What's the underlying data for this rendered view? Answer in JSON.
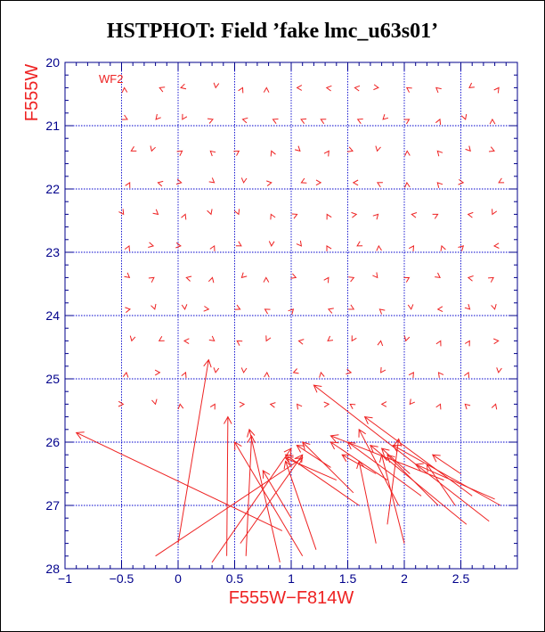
{
  "chart_data": {
    "type": "vector",
    "title": "HSTPHOT: Field ’fake lmc_u63s01’",
    "xlabel": "F555W−F814W",
    "ylabel": "F555W",
    "annotation": "WF2",
    "xlim": [
      -1,
      3
    ],
    "ylim": [
      20,
      28
    ],
    "y_inverted": true,
    "grid": true,
    "x_ticks": [
      -1,
      -0.5,
      0,
      0.5,
      1,
      1.5,
      2,
      2.5
    ],
    "x_tick_labels": [
      "−1",
      "−0.5",
      "0",
      "0.5",
      "1",
      "1.5",
      "2",
      "2.5"
    ],
    "y_ticks": [
      20,
      21,
      22,
      23,
      24,
      25,
      26,
      27,
      28
    ],
    "y_tick_labels": [
      "20",
      "21",
      "22",
      "23",
      "24",
      "25",
      "26",
      "27",
      "28"
    ],
    "colors": {
      "frame": "#00008b",
      "grid": "#0000cc",
      "data": "#ee2222",
      "title": "#000000"
    },
    "arrow_grid": {
      "colors": [
        -0.45,
        -0.2,
        0.05,
        0.3,
        0.55,
        0.8,
        1.05,
        1.3,
        1.55,
        1.8,
        2.05,
        2.3,
        2.55,
        2.8
      ],
      "mags": [
        20.4,
        20.9,
        21.4,
        21.9,
        22.4,
        22.9,
        23.4,
        23.9,
        24.4,
        24.9,
        25.4
      ]
    },
    "long_arrows": [
      {
        "x1": 0.0,
        "y1": 27.6,
        "x2": 0.27,
        "y2": 24.7
      },
      {
        "x1": 0.43,
        "y1": 27.8,
        "x2": 0.44,
        "y2": 25.6
      },
      {
        "x1": 0.6,
        "y1": 27.8,
        "x2": 0.65,
        "y2": 25.9
      },
      {
        "x1": 0.92,
        "y1": 27.4,
        "x2": -0.9,
        "y2": 25.85
      },
      {
        "x1": 0.9,
        "y1": 27.9,
        "x2": 0.63,
        "y2": 25.8
      },
      {
        "x1": 0.3,
        "y1": 27.9,
        "x2": 1.0,
        "y2": 26.1
      },
      {
        "x1": 1.22,
        "y1": 27.7,
        "x2": 0.95,
        "y2": 26.3
      },
      {
        "x1": 1.1,
        "y1": 27.8,
        "x2": 0.5,
        "y2": 26.0
      },
      {
        "x1": -0.2,
        "y1": 27.8,
        "x2": 1.1,
        "y2": 26.25
      },
      {
        "x1": 1.0,
        "y1": 27.2,
        "x2": 0.75,
        "y2": 26.45
      },
      {
        "x1": 0.55,
        "y1": 27.6,
        "x2": 1.1,
        "y2": 26.2
      },
      {
        "x1": 1.6,
        "y1": 27.0,
        "x2": 0.95,
        "y2": 26.2
      },
      {
        "x1": 1.55,
        "y1": 26.8,
        "x2": 1.1,
        "y2": 26.0
      },
      {
        "x1": 1.75,
        "y1": 27.6,
        "x2": 1.6,
        "y2": 26.3
      },
      {
        "x1": 2.0,
        "y1": 27.6,
        "x2": 1.8,
        "y2": 26.2
      },
      {
        "x1": 1.95,
        "y1": 27.0,
        "x2": 1.6,
        "y2": 25.8
      },
      {
        "x1": 2.15,
        "y1": 26.85,
        "x2": 1.5,
        "y2": 26.0
      },
      {
        "x1": 2.55,
        "y1": 27.3,
        "x2": 1.7,
        "y2": 26.05
      },
      {
        "x1": 2.75,
        "y1": 27.25,
        "x2": 1.2,
        "y2": 25.1
      },
      {
        "x1": 2.6,
        "y1": 26.85,
        "x2": 1.65,
        "y2": 25.6
      },
      {
        "x1": 2.85,
        "y1": 27.0,
        "x2": 1.9,
        "y2": 26.05
      },
      {
        "x1": 1.85,
        "y1": 27.3,
        "x2": 1.95,
        "y2": 25.95
      },
      {
        "x1": 2.3,
        "y1": 27.0,
        "x2": 1.85,
        "y2": 26.2
      },
      {
        "x1": 2.45,
        "y1": 27.0,
        "x2": 2.2,
        "y2": 26.35
      },
      {
        "x1": 2.8,
        "y1": 26.9,
        "x2": 2.1,
        "y2": 26.35
      },
      {
        "x1": 2.35,
        "y1": 26.6,
        "x2": 1.35,
        "y2": 25.9
      },
      {
        "x1": 2.05,
        "y1": 26.5,
        "x2": 1.8,
        "y2": 26.1
      },
      {
        "x1": 2.5,
        "y1": 26.5,
        "x2": 2.25,
        "y2": 26.2
      },
      {
        "x1": 1.4,
        "y1": 26.6,
        "x2": 0.95,
        "y2": 26.25
      },
      {
        "x1": 1.35,
        "y1": 26.4,
        "x2": 1.05,
        "y2": 26.05
      },
      {
        "x1": 1.85,
        "y1": 26.6,
        "x2": 1.35,
        "y2": 26.0
      },
      {
        "x1": 1.75,
        "y1": 26.5,
        "x2": 1.45,
        "y2": 26.2
      }
    ]
  }
}
